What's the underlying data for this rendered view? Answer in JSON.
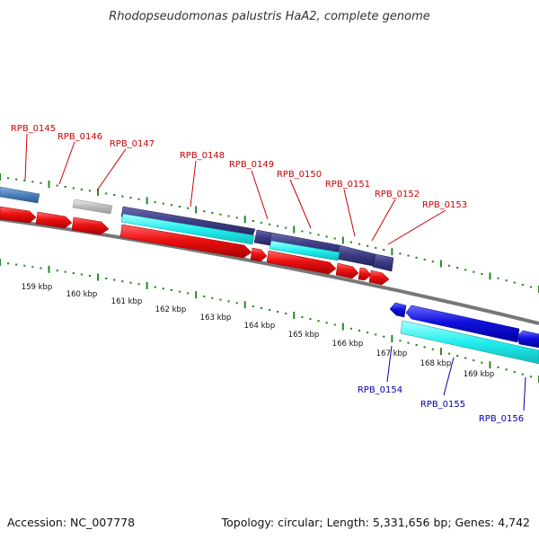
{
  "title": "Rhodopseudomonas palustris HaA2, complete genome",
  "footer": {
    "accession": "Accession: NC_007778",
    "summary": "Topology: circular; Length: 5,331,656 bp; Genes: 4,742"
  },
  "gene_labels": {
    "forward": [
      "RPB_0145",
      "RPB_0146",
      "RPB_0147",
      "RPB_0148",
      "RPB_0149",
      "RPB_0150",
      "RPB_0151",
      "RPB_0152",
      "RPB_0153"
    ],
    "reverse": [
      "RPB_0154",
      "RPB_0155",
      "RPB_0156"
    ]
  },
  "scale_labels": [
    "159 kbp",
    "160 kbp",
    "161 kbp",
    "162 kbp",
    "163 kbp",
    "164 kbp",
    "165 kbp",
    "166 kbp",
    "167 kbp",
    "168 kbp",
    "169 kbp"
  ],
  "colors": {
    "forward_cds": "#ee1111",
    "reverse_cds": "#1111dd",
    "rna_feature": "#22eeee",
    "gene_block": "#3a3a80",
    "other_block": "#4a7fb8",
    "pseudo_block": "#bbbbbb",
    "backbone": "#777777",
    "tick": "#228822",
    "label_forward": "#cc0000",
    "label_reverse": "#0000aa"
  }
}
